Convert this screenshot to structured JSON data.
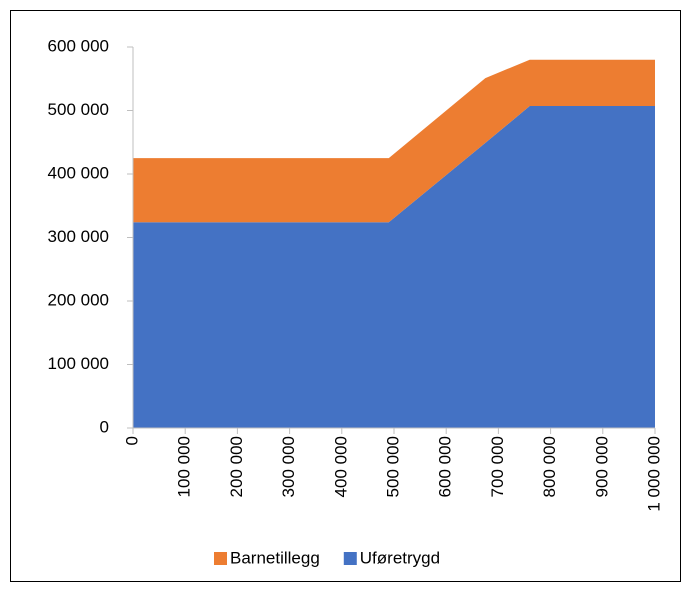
{
  "chart_data": {
    "type": "stacked_area",
    "x": [
      0,
      490000,
      675000,
      760000,
      1000000
    ],
    "series": [
      {
        "name": "Barnetillegg",
        "color": "#ed7d31",
        "values": [
          101000,
          101000,
          102000,
          73000,
          73000
        ]
      },
      {
        "name": "Uføretrygd",
        "color": "#4472c4",
        "values": [
          324000,
          324000,
          449000,
          507000,
          507000
        ]
      }
    ],
    "xlim": [
      0,
      1000000
    ],
    "xticks": [
      0,
      {
        "value": 100000,
        "label": "100 000"
      },
      {
        "value": 200000,
        "label": "200 000"
      },
      {
        "value": 300000,
        "label": "300 000"
      },
      {
        "value": 400000,
        "label": "400 000"
      },
      {
        "value": 500000,
        "label": "500 000"
      },
      {
        "value": 600000,
        "label": "600 000"
      },
      {
        "value": 700000,
        "label": "700 000"
      },
      {
        "value": 800000,
        "label": "800 000"
      },
      {
        "value": 900000,
        "label": "900 000"
      },
      {
        "value": 1000000,
        "label": "1 000 000"
      }
    ],
    "ylim": [
      0,
      600000
    ],
    "yticks": [
      0,
      {
        "value": 100000,
        "label": "100 000"
      },
      {
        "value": 200000,
        "label": "200 000"
      },
      {
        "value": 300000,
        "label": "300 000"
      },
      {
        "value": 400000,
        "label": "400 000"
      },
      {
        "value": 500000,
        "label": "500 000"
      },
      {
        "value": 600000,
        "label": "600 000"
      }
    ],
    "legend": "bottom"
  }
}
